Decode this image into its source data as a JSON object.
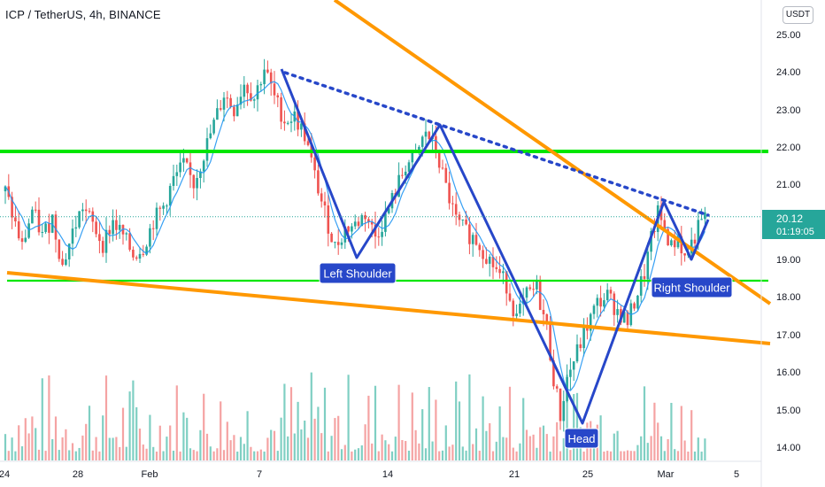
{
  "header": {
    "title": "ICP / TetherUS, 4h, BINANCE",
    "currency": "USDT"
  },
  "price_tag": {
    "price": "20.12",
    "countdown": "01:19:05",
    "color": "#26a69a"
  },
  "chart_data": {
    "type": "candlestick",
    "symbol": "ICP / TetherUS",
    "interval": "4h",
    "exchange": "BINANCE",
    "y_ticks": [
      "25.00",
      "24.00",
      "23.00",
      "22.00",
      "21.00",
      "20.00",
      "19.00",
      "18.00",
      "17.00",
      "16.00",
      "15.00",
      "14.00"
    ],
    "x_ticks": [
      "24",
      "28",
      "Feb",
      "7",
      "14",
      "21",
      "25",
      "Mar",
      "5"
    ],
    "ylim": [
      13.8,
      25.4
    ],
    "last_price": 20.12,
    "price_path": [
      [
        0,
        20.8
      ],
      [
        3,
        19.9
      ],
      [
        5,
        19.3
      ],
      [
        8,
        20.3
      ],
      [
        11,
        19.6
      ],
      [
        14,
        20.1
      ],
      [
        17,
        18.8
      ],
      [
        20,
        19.7
      ],
      [
        23,
        20.4
      ],
      [
        26,
        19.9
      ],
      [
        29,
        19.4
      ],
      [
        32,
        20.0
      ],
      [
        35,
        19.6
      ],
      [
        38,
        19.1
      ],
      [
        41,
        19.3
      ],
      [
        44,
        20.0
      ],
      [
        47,
        20.4
      ],
      [
        50,
        21.1
      ],
      [
        53,
        21.5
      ],
      [
        56,
        21.0
      ],
      [
        59,
        21.8
      ],
      [
        62,
        22.6
      ],
      [
        65,
        23.4
      ],
      [
        68,
        23.0
      ],
      [
        71,
        23.7
      ],
      [
        74,
        23.3
      ],
      [
        77,
        24.1
      ],
      [
        80,
        23.3
      ],
      [
        83,
        22.7
      ],
      [
        86,
        22.8
      ],
      [
        89,
        22.3
      ],
      [
        92,
        21.2
      ],
      [
        95,
        20.2
      ],
      [
        98,
        19.3
      ],
      [
        101,
        19.8
      ],
      [
        104,
        19.9
      ],
      [
        107,
        20.2
      ],
      [
        110,
        19.6
      ],
      [
        113,
        20.1
      ],
      [
        116,
        20.8
      ],
      [
        119,
        21.5
      ],
      [
        122,
        21.7
      ],
      [
        125,
        22.4
      ],
      [
        128,
        21.9
      ],
      [
        131,
        20.9
      ],
      [
        134,
        20.0
      ],
      [
        137,
        19.7
      ],
      [
        140,
        19.5
      ],
      [
        143,
        19.1
      ],
      [
        146,
        18.7
      ],
      [
        149,
        18.3
      ],
      [
        152,
        17.4
      ],
      [
        155,
        18.0
      ],
      [
        158,
        18.2
      ],
      [
        161,
        17.1
      ],
      [
        163,
        15.8
      ],
      [
        165,
        14.8
      ],
      [
        167,
        15.8
      ],
      [
        170,
        16.5
      ],
      [
        173,
        17.2
      ],
      [
        176,
        17.8
      ],
      [
        179,
        18.0
      ],
      [
        182,
        17.6
      ],
      [
        185,
        17.3
      ],
      [
        188,
        18.1
      ],
      [
        190,
        18.6
      ],
      [
        192,
        19.5
      ],
      [
        194,
        20.2
      ],
      [
        196,
        19.8
      ],
      [
        198,
        19.3
      ],
      [
        200,
        19.6
      ],
      [
        202,
        19.0
      ],
      [
        204,
        19.4
      ],
      [
        206,
        19.8
      ],
      [
        208,
        20.1
      ]
    ],
    "patterns": {
      "neckline_color": "#00e600",
      "trendline_color": "#ff9800",
      "head_shoulders_color": "#2747c9",
      "labels": [
        "Left Shoulder",
        "Head",
        "Right Shoulder"
      ]
    }
  }
}
